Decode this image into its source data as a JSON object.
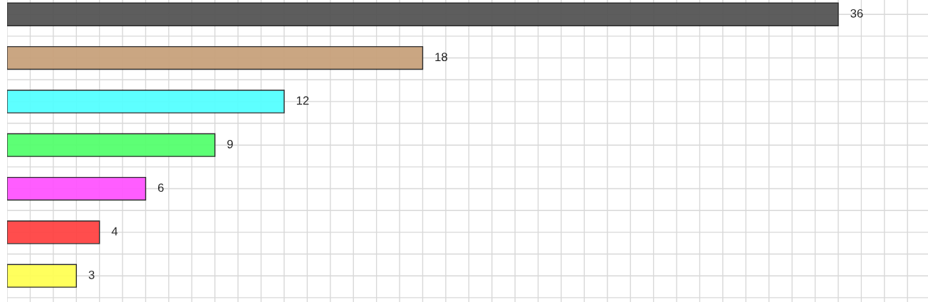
{
  "chart_data": {
    "type": "bar",
    "orientation": "horizontal",
    "categories": [
      null,
      null,
      null,
      null,
      null,
      null,
      null
    ],
    "values": [
      36,
      18,
      12,
      9,
      6,
      4,
      3
    ],
    "colors": [
      "#555555",
      "#c8a27c",
      "#55ffff",
      "#55ff6e",
      "#ff55ff",
      "#ff4444",
      "#ffff55"
    ],
    "data_labels": true,
    "grid": true
  }
}
